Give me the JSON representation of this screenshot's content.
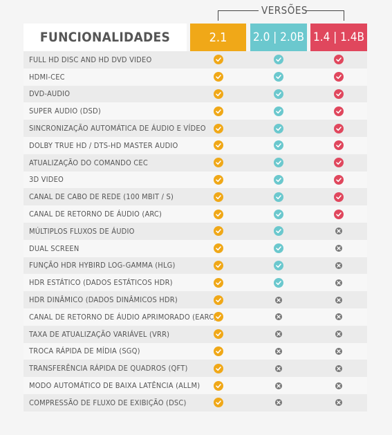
{
  "versions_label": "VERSÕES",
  "header": {
    "features": "FUNCIONALIDADES",
    "v21": "2.1",
    "v20": "2.0 | 2.0B",
    "v14": "1.4 | 1.4B"
  },
  "colors": {
    "v21": "#f0a818",
    "v20": "#6bc8ce",
    "v14": "#e0475d",
    "cross": "#777777"
  },
  "rows": [
    {
      "name": "FULL HD DISC AND HD DVD VIDEO",
      "v21": "check",
      "v20": "check",
      "v14": "check"
    },
    {
      "name": "HDMI-CEC",
      "v21": "check",
      "v20": "check",
      "v14": "check"
    },
    {
      "name": "DVD-AUDIO",
      "v21": "check",
      "v20": "check",
      "v14": "check"
    },
    {
      "name": "SUPER AUDIO (DSD)",
      "v21": "check",
      "v20": "check",
      "v14": "check"
    },
    {
      "name": "SINCRONIZAÇÃO AUTOMÁTICA DE ÁUDIO E VÍDEO",
      "v21": "check",
      "v20": "check",
      "v14": "check"
    },
    {
      "name": "DOLBY TRUE HD / DTS-HD MASTER AUDIO",
      "v21": "check",
      "v20": "check",
      "v14": "check"
    },
    {
      "name": "ATUALIZAÇÃO DO COMANDO CEC",
      "v21": "check",
      "v20": "check",
      "v14": "check"
    },
    {
      "name": "3D VIDEO",
      "v21": "check",
      "v20": "check",
      "v14": "check"
    },
    {
      "name": "CANAL DE CABO DE REDE (100 MBIT / S)",
      "v21": "check",
      "v20": "check",
      "v14": "check"
    },
    {
      "name": "CANAL DE RETORNO DE ÁUDIO (ARC)",
      "v21": "check",
      "v20": "check",
      "v14": "check"
    },
    {
      "name": "MÚLTIPLOS FLUXOS DE ÁUDIO",
      "v21": "check",
      "v20": "check",
      "v14": "cross"
    },
    {
      "name": "DUAL SCREEN",
      "v21": "check",
      "v20": "check",
      "v14": "cross"
    },
    {
      "name": "FUNÇÃO HDR HYBIRD LOG-GAMMA (HLG)",
      "v21": "check",
      "v20": "check",
      "v14": "cross"
    },
    {
      "name": "HDR ESTÁTICO (DADOS ESTÁTICOS HDR)",
      "v21": "check",
      "v20": "check",
      "v14": "cross"
    },
    {
      "name": "HDR DINÂMICO (DADOS DINÂMICOS HDR)",
      "v21": "check",
      "v20": "cross",
      "v14": "cross"
    },
    {
      "name": "CANAL DE RETORNO DE ÁUDIO APRIMORADO (EARC)",
      "v21": "check",
      "v20": "cross",
      "v14": "cross"
    },
    {
      "name": "TAXA DE ATUALIZAÇÃO VARIÁVEL (VRR)",
      "v21": "check",
      "v20": "cross",
      "v14": "cross"
    },
    {
      "name": "TROCA RÁPIDA DE MÍDIA (SGQ)",
      "v21": "check",
      "v20": "cross",
      "v14": "cross"
    },
    {
      "name": "TRANSFERÊNCIA RÁPIDA DE QUADROS (QFT)",
      "v21": "check",
      "v20": "cross",
      "v14": "cross"
    },
    {
      "name": "MODO AUTOMÁTICO DE BAIXA LATÊNCIA (ALLM)",
      "v21": "check",
      "v20": "cross",
      "v14": "cross"
    },
    {
      "name": "COMPRESSÃO DE FLUXO DE EXIBIÇÃO (DSC)",
      "v21": "check",
      "v20": "cross",
      "v14": "cross"
    }
  ]
}
